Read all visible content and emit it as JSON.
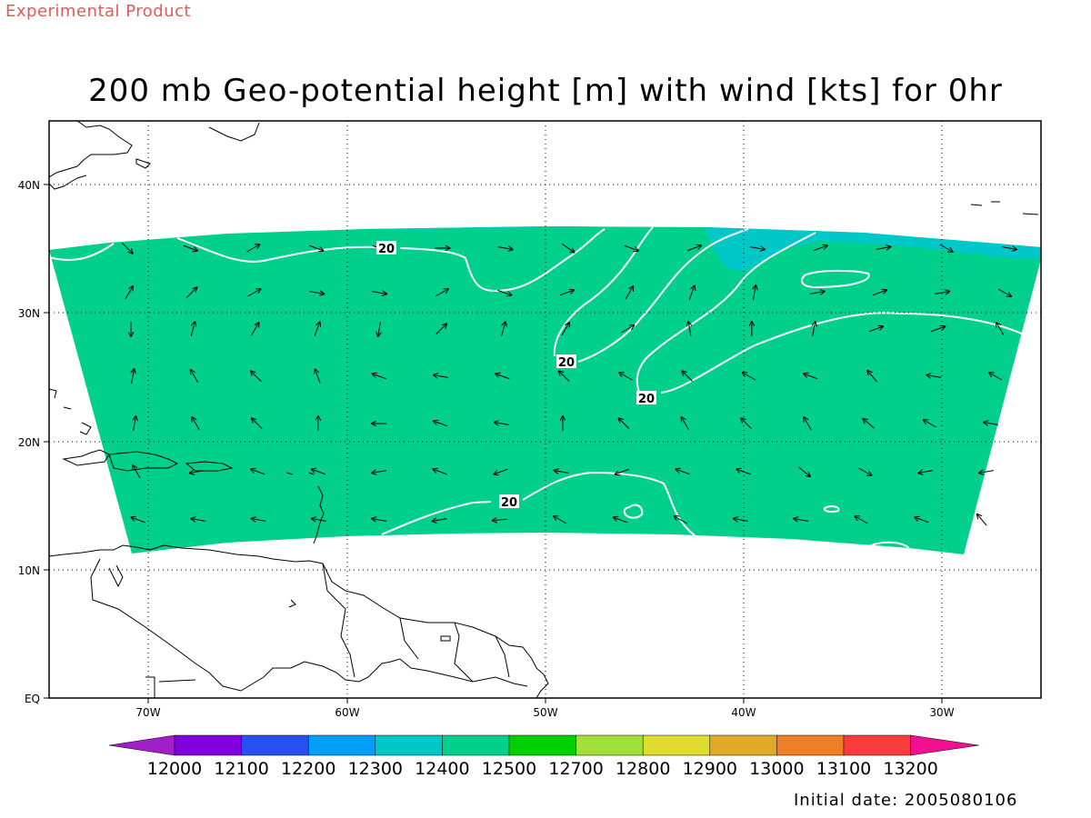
{
  "header": {
    "product_tag": "Experimental Product",
    "title": "200 mb Geo-potential height [m] with wind [kts] for 0hr",
    "initial_date": "Initial date: 2005080106"
  },
  "map": {
    "lat_ticks": [
      "40N",
      "30N",
      "20N",
      "10N",
      "EQ"
    ],
    "lon_ticks": [
      "70W",
      "60W",
      "50W",
      "40W",
      "30W"
    ],
    "contour_labels": [
      "20",
      "20",
      "20",
      "20"
    ],
    "fill_colors": {
      "main": "#00d08c",
      "upper": "#00c8c8"
    }
  },
  "colorbar": {
    "labels": [
      "12000",
      "12100",
      "12200",
      "12300",
      "12400",
      "12500",
      "12700",
      "12800",
      "12900",
      "13000",
      "13100",
      "13200"
    ],
    "colors": [
      "#a020c8",
      "#8000e0",
      "#2850f0",
      "#00a0f8",
      "#00c8c8",
      "#00d08c",
      "#00d000",
      "#a0e038",
      "#e0dc30",
      "#e0aa28",
      "#f08028",
      "#f83c3c",
      "#f01090"
    ]
  }
}
